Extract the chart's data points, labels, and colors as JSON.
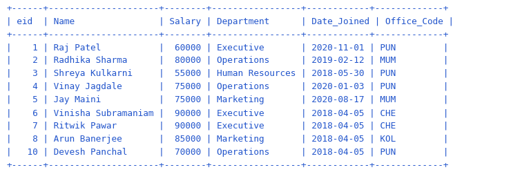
{
  "bg_color": "#ffffff",
  "text_color": "#2255cc",
  "font_size": 9.2,
  "table_text": [
    "+------+---------------------+--------+-----------------+------------+-------------+",
    "| eid  | Name                | Salary | Department      | Date_Joined | Office_Code |",
    "+------+---------------------+--------+-----------------+------------+-------------+",
    "|    1 | Raj Patel           |  60000 | Executive       | 2020-11-01 | PUN         |",
    "|    2 | Radhika Sharma      |  80000 | Operations      | 2019-02-12 | MUM         |",
    "|    3 | Shreya Kulkarni     |  55000 | Human Resources | 2018-05-30 | PUN         |",
    "|    4 | Vinay Jagdale       |  75000 | Operations      | 2020-01-03 | PUN         |",
    "|    5 | Jay Maini           |  75000 | Marketing       | 2020-08-17 | MUM         |",
    "|    6 | Vinisha Subramaniam |  90000 | Executive       | 2018-04-05 | CHE         |",
    "|    7 | Ritwik Pawar        |  90000 | Executive       | 2018-04-05 | CHE         |",
    "|    8 | Arun Banerjee       |  85000 | Marketing       | 2018-04-05 | KOL         |",
    "|   10 | Devesh Panchal      |  70000 | Operations      | 2018-04-05 | PUN         |",
    "+------+---------------------+--------+-----------------+------------+-------------+"
  ],
  "dash_line_indices": [
    0,
    2,
    12
  ],
  "pipe_color": "#2255cc",
  "dash_color": "#2255cc"
}
